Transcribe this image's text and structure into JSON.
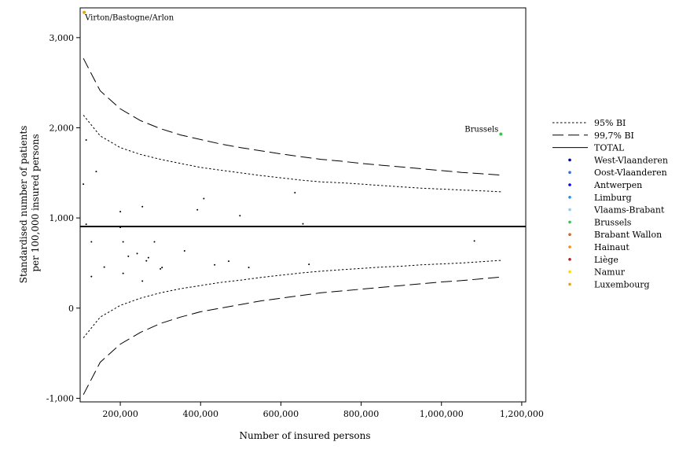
{
  "chart_data": {
    "type": "scatter",
    "title": "",
    "xlabel": "Number of insured persons",
    "ylabel": "Standardised number of patients per 100,000 insured persons",
    "ylabel_lines": [
      "Standardised number of patients",
      "per 100,000 insured persons"
    ],
    "xlim": [
      100000,
      1210000
    ],
    "ylim": [
      -1040,
      3330
    ],
    "x_ticks": [
      200000,
      400000,
      600000,
      800000,
      1000000,
      1200000
    ],
    "x_tick_labels": [
      "200,000",
      "400,000",
      "600,000",
      "800,000",
      "1,000,000",
      "1,200,000"
    ],
    "y_ticks": [
      -1000,
      0,
      1000,
      2000,
      3000
    ],
    "y_tick_labels": [
      "-1,000",
      "0",
      "1,000",
      "2,000",
      "3,000"
    ],
    "grid": false,
    "legend_position": "right",
    "total": 905,
    "reference_lines": [
      {
        "name": "95% BI",
        "style": "dotted",
        "color": "#000000",
        "x": [
          108000,
          150000,
          200000,
          250000,
          300000,
          350000,
          400000,
          450000,
          500000,
          550000,
          600000,
          650000,
          700000,
          750000,
          800000,
          850000,
          900000,
          950000,
          1000000,
          1050000,
          1100000,
          1150000
        ],
        "upper": [
          2140,
          1910,
          1780,
          1705,
          1650,
          1605,
          1560,
          1530,
          1500,
          1470,
          1445,
          1420,
          1400,
          1390,
          1375,
          1360,
          1345,
          1330,
          1320,
          1310,
          1300,
          1290
        ],
        "lower": [
          -330,
          -100,
          30,
          110,
          170,
          215,
          250,
          285,
          310,
          340,
          365,
          390,
          410,
          425,
          440,
          455,
          465,
          480,
          490,
          500,
          515,
          530
        ]
      },
      {
        "name": "99,7% BI",
        "style": "dashed",
        "color": "#000000",
        "x": [
          108000,
          150000,
          200000,
          250000,
          300000,
          350000,
          400000,
          450000,
          500000,
          550000,
          600000,
          650000,
          700000,
          750000,
          800000,
          850000,
          900000,
          950000,
          1000000,
          1050000,
          1100000,
          1150000
        ],
        "upper": [
          2770,
          2410,
          2210,
          2080,
          1990,
          1920,
          1870,
          1820,
          1780,
          1745,
          1710,
          1680,
          1650,
          1630,
          1605,
          1585,
          1565,
          1545,
          1525,
          1505,
          1490,
          1475
        ],
        "lower": [
          -960,
          -600,
          -400,
          -270,
          -170,
          -100,
          -40,
          0,
          40,
          80,
          110,
          140,
          170,
          190,
          210,
          230,
          250,
          270,
          290,
          305,
          325,
          345
        ]
      }
    ],
    "legend": [
      {
        "label": "95% BI",
        "kind": "dotted",
        "color": "#000000"
      },
      {
        "label": "99,7% BI",
        "kind": "dashed",
        "color": "#000000"
      },
      {
        "label": "TOTAL",
        "kind": "solid",
        "color": "#000000"
      },
      {
        "label": "West-Vlaanderen",
        "kind": "dot",
        "color": "#00008b"
      },
      {
        "label": "Oost-Vlaanderen",
        "kind": "dot",
        "color": "#3a6fd8"
      },
      {
        "label": "Antwerpen",
        "kind": "dot",
        "color": "#0000ff"
      },
      {
        "label": "Limburg",
        "kind": "dot",
        "color": "#1e90ff"
      },
      {
        "label": "Vlaams-Brabant",
        "kind": "dot",
        "color": "#87cefa"
      },
      {
        "label": "Brussels",
        "kind": "dot",
        "color": "#2ecc40"
      },
      {
        "label": "Brabant Wallon",
        "kind": "dot",
        "color": "#d2691e"
      },
      {
        "label": "Hainaut",
        "kind": "dot",
        "color": "#ff8c00"
      },
      {
        "label": "Liège",
        "kind": "dot",
        "color": "#b22222"
      },
      {
        "label": "Namur",
        "kind": "dot",
        "color": "#ffd700"
      },
      {
        "label": "Luxembourg",
        "kind": "dot",
        "color": "#daa520"
      }
    ],
    "points": [
      {
        "x": 110000,
        "y": 3280,
        "color": "#daa520",
        "label": "Virton/Bastogne/Arlon"
      },
      {
        "x": 1148000,
        "y": 1930,
        "color": "#2ecc40",
        "label": "Brussels"
      },
      {
        "x": 108000,
        "y": 1375,
        "color": "#000000",
        "label": ""
      },
      {
        "x": 115000,
        "y": 1865,
        "color": "#000000",
        "label": ""
      },
      {
        "x": 115000,
        "y": 930,
        "color": "#000000",
        "label": ""
      },
      {
        "x": 128000,
        "y": 735,
        "color": "#000000",
        "label": ""
      },
      {
        "x": 128000,
        "y": 350,
        "color": "#000000",
        "label": ""
      },
      {
        "x": 140000,
        "y": 1515,
        "color": "#000000",
        "label": ""
      },
      {
        "x": 160000,
        "y": 455,
        "color": "#000000",
        "label": ""
      },
      {
        "x": 200000,
        "y": 1070,
        "color": "#000000",
        "label": ""
      },
      {
        "x": 200000,
        "y": 895,
        "color": "#000000",
        "label": ""
      },
      {
        "x": 207000,
        "y": 735,
        "color": "#000000",
        "label": ""
      },
      {
        "x": 207000,
        "y": 385,
        "color": "#000000",
        "label": ""
      },
      {
        "x": 220000,
        "y": 575,
        "color": "#000000",
        "label": ""
      },
      {
        "x": 242000,
        "y": 605,
        "color": "#000000",
        "label": ""
      },
      {
        "x": 255000,
        "y": 1125,
        "color": "#000000",
        "label": ""
      },
      {
        "x": 255000,
        "y": 300,
        "color": "#000000",
        "label": ""
      },
      {
        "x": 265000,
        "y": 525,
        "color": "#000000",
        "label": ""
      },
      {
        "x": 270000,
        "y": 560,
        "color": "#000000",
        "label": ""
      },
      {
        "x": 285000,
        "y": 735,
        "color": "#000000",
        "label": ""
      },
      {
        "x": 300000,
        "y": 435,
        "color": "#000000",
        "label": ""
      },
      {
        "x": 304000,
        "y": 450,
        "color": "#000000",
        "label": ""
      },
      {
        "x": 360000,
        "y": 635,
        "color": "#000000",
        "label": ""
      },
      {
        "x": 392000,
        "y": 1090,
        "color": "#000000",
        "label": ""
      },
      {
        "x": 408000,
        "y": 1215,
        "color": "#000000",
        "label": ""
      },
      {
        "x": 435000,
        "y": 480,
        "color": "#000000",
        "label": ""
      },
      {
        "x": 470000,
        "y": 520,
        "color": "#000000",
        "label": ""
      },
      {
        "x": 498000,
        "y": 1025,
        "color": "#000000",
        "label": ""
      },
      {
        "x": 520000,
        "y": 450,
        "color": "#000000",
        "label": ""
      },
      {
        "x": 635000,
        "y": 1280,
        "color": "#000000",
        "label": ""
      },
      {
        "x": 655000,
        "y": 935,
        "color": "#000000",
        "label": ""
      },
      {
        "x": 670000,
        "y": 485,
        "color": "#000000",
        "label": ""
      },
      {
        "x": 1082000,
        "y": 745,
        "color": "#000000",
        "label": ""
      }
    ]
  }
}
